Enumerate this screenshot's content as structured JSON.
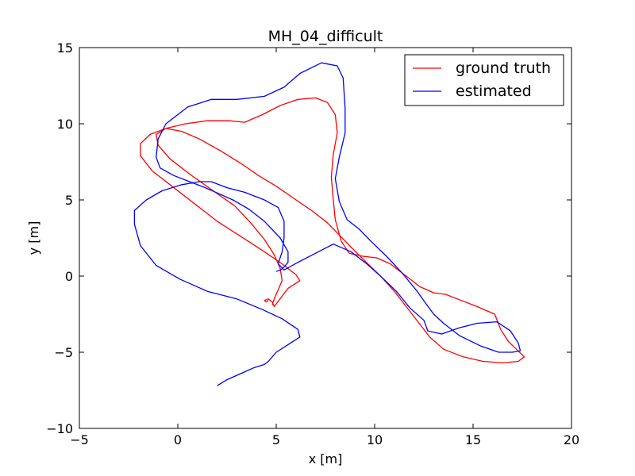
{
  "chart_data": {
    "type": "line",
    "title": "MH_04_difficult",
    "xlabel": "x [m]",
    "ylabel": "y [m]",
    "xlim": [
      -5,
      20
    ],
    "ylim": [
      -10,
      15
    ],
    "xticks": [
      -5,
      0,
      5,
      10,
      15,
      20
    ],
    "yticks": [
      -10,
      -5,
      0,
      5,
      10,
      15
    ],
    "xtick_labels": [
      "−5",
      "0",
      "5",
      "10",
      "15",
      "20"
    ],
    "ytick_labels": [
      "−10",
      "−5",
      "0",
      "5",
      "10",
      "15"
    ],
    "grid": false,
    "legend_position": "top-right",
    "series": [
      {
        "name": "ground truth",
        "color": "#ff0000",
        "x": [
          4.6,
          4.5,
          4.4,
          4.6,
          4.8,
          4.9,
          5.6,
          6.2,
          6.0,
          5.3,
          4.4,
          3.2,
          2.0,
          0.8,
          -0.3,
          -1.3,
          -1.9,
          -1.9,
          -1.4,
          -0.6,
          0.4,
          1.5,
          2.6,
          3.4,
          4.3,
          5.2,
          6.1,
          7.0,
          7.6,
          8.0,
          8.1,
          7.9,
          7.8,
          7.9,
          8.0,
          8.3,
          8.7,
          9.4,
          10.1,
          10.8,
          11.6,
          12.3,
          13.0,
          13.6,
          14.2,
          15.2,
          16.1,
          16.4,
          16.8,
          17.2,
          17.6,
          17.3,
          16.5,
          15.5,
          14.5,
          13.5,
          12.8,
          12.2,
          11.6,
          11.0,
          10.3,
          9.5,
          8.8,
          8.2,
          7.6,
          6.8,
          5.9,
          5.0,
          4.1,
          3.2,
          2.2,
          1.1,
          0.2,
          -0.6,
          -1.1,
          -1.0,
          -0.4,
          0.6,
          1.8,
          2.9,
          3.7,
          4.4,
          4.9,
          5.2,
          5.3,
          5.1,
          4.9,
          4.8
        ],
        "y": [
          -1.6,
          -1.7,
          -1.6,
          -1.5,
          -1.7,
          -2.0,
          -0.8,
          -0.3,
          0.1,
          0.8,
          1.6,
          2.6,
          3.6,
          4.8,
          5.9,
          6.9,
          7.9,
          8.7,
          9.3,
          9.7,
          10.0,
          10.2,
          10.2,
          10.1,
          10.6,
          11.2,
          11.6,
          11.7,
          11.4,
          10.6,
          9.4,
          8.0,
          6.5,
          5.0,
          3.7,
          2.3,
          1.5,
          1.3,
          1.2,
          0.8,
          0.0,
          -0.7,
          -1.1,
          -1.2,
          -1.5,
          -2.0,
          -2.5,
          -3.5,
          -4.3,
          -4.8,
          -5.3,
          -5.6,
          -5.7,
          -5.6,
          -5.3,
          -4.8,
          -4.0,
          -3.0,
          -2.0,
          -1.0,
          0.0,
          1.0,
          1.9,
          2.7,
          3.5,
          4.3,
          5.1,
          5.9,
          6.6,
          7.4,
          8.2,
          9.0,
          9.5,
          9.7,
          9.3,
          8.6,
          7.7,
          6.7,
          5.6,
          4.6,
          3.5,
          2.4,
          1.4,
          0.5,
          -0.3,
          -0.9,
          -1.5,
          -1.9
        ]
      },
      {
        "name": "estimated",
        "color": "#0000ff",
        "x": [
          2.0,
          2.5,
          3.2,
          3.9,
          4.4,
          4.6,
          5.0,
          5.6,
          6.2,
          6.1,
          5.3,
          4.3,
          3.0,
          1.5,
          0.1,
          -1.1,
          -1.9,
          -2.2,
          -2.2,
          -1.6,
          -0.8,
          0.2,
          1.1,
          1.7,
          2.5,
          3.4,
          4.4,
          5.1,
          5.4,
          5.4,
          5.3,
          5.1,
          5.4,
          6.1,
          7.0,
          7.9,
          8.8,
          9.6,
          10.3,
          11.1,
          11.8,
          12.5,
          12.7,
          13.4,
          14.3,
          15.2,
          16.2,
          16.9,
          17.3,
          17.4,
          17.0,
          16.3,
          15.4,
          14.3,
          13.5,
          13.0,
          12.6,
          12.1,
          11.4,
          10.6,
          9.8,
          9.2,
          8.6,
          8.2,
          8.0,
          8.2,
          8.5,
          8.5,
          8.4,
          8.1,
          7.3,
          6.2,
          5.4,
          4.4,
          3.0,
          1.7,
          0.5,
          -0.6,
          -1.0,
          -1.1,
          -0.9,
          -0.2,
          0.6,
          1.4,
          2.1,
          2.8,
          3.6,
          4.4,
          5.2,
          5.6,
          5.6,
          5.4,
          5.2,
          5.0
        ],
        "y": [
          -7.2,
          -6.8,
          -6.4,
          -6.0,
          -5.8,
          -5.6,
          -5.0,
          -4.5,
          -4.0,
          -3.5,
          -2.8,
          -2.2,
          -1.5,
          -1.0,
          -0.2,
          0.7,
          2.0,
          3.4,
          4.3,
          5.0,
          5.6,
          6.0,
          6.2,
          6.2,
          5.8,
          5.5,
          5.0,
          4.5,
          3.6,
          2.5,
          1.6,
          0.8,
          0.4,
          0.9,
          1.5,
          2.1,
          1.6,
          0.8,
          0.0,
          -1.0,
          -2.1,
          -2.9,
          -3.6,
          -3.8,
          -3.4,
          -3.1,
          -3.0,
          -3.6,
          -4.4,
          -4.9,
          -5.0,
          -5.0,
          -4.6,
          -3.9,
          -3.1,
          -2.5,
          -1.8,
          -0.9,
          0.2,
          1.3,
          2.3,
          3.1,
          3.7,
          4.9,
          6.4,
          7.8,
          9.4,
          11.0,
          13.0,
          13.8,
          14.0,
          13.3,
          12.4,
          11.8,
          11.6,
          11.6,
          11.1,
          10.0,
          9.0,
          7.8,
          7.1,
          6.6,
          6.2,
          5.8,
          5.4,
          5.0,
          4.4,
          3.6,
          2.5,
          1.6,
          0.9,
          0.6,
          0.4,
          0.3
        ]
      }
    ]
  }
}
